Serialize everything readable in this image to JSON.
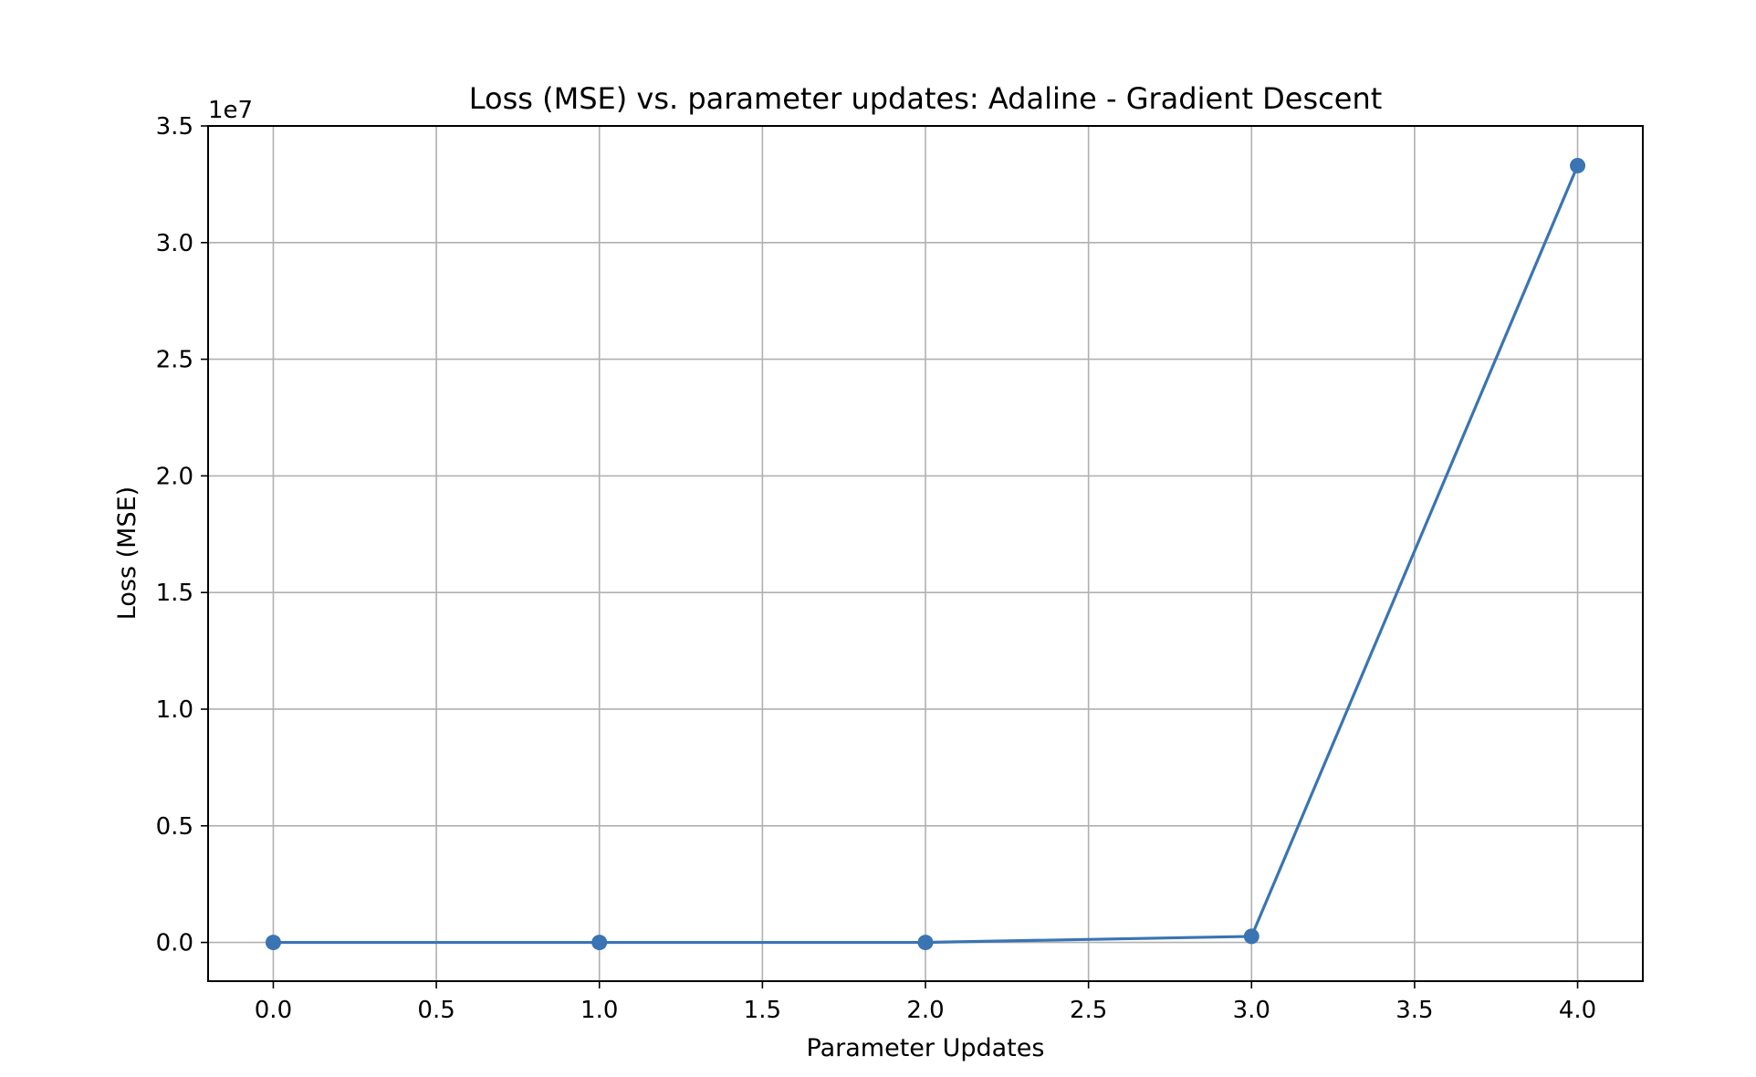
{
  "chart_data": {
    "type": "line",
    "title": "Loss (MSE) vs. parameter updates: Adaline - Gradient Descent",
    "xlabel": "Parameter Updates",
    "ylabel": "Loss (MSE)",
    "y_offset_label": "1e7",
    "x": [
      0,
      1,
      2,
      3,
      4
    ],
    "series": [
      {
        "values": [
          0,
          0,
          0,
          260000,
          33300000
        ],
        "color": "#3a74b3",
        "marker": "circle"
      }
    ],
    "xlim": [
      -0.2,
      4.2
    ],
    "ylim": [
      -1660000,
      35000000
    ],
    "x_ticks": [
      0.0,
      0.5,
      1.0,
      1.5,
      2.0,
      2.5,
      3.0,
      3.5,
      4.0
    ],
    "x_tick_labels": [
      "0.0",
      "0.5",
      "1.0",
      "1.5",
      "2.0",
      "2.5",
      "3.0",
      "3.5",
      "4.0"
    ],
    "y_ticks": [
      0,
      5000000,
      10000000,
      15000000,
      20000000,
      25000000,
      30000000,
      35000000
    ],
    "y_tick_labels": [
      "0.0",
      "0.5",
      "1.0",
      "1.5",
      "2.0",
      "2.5",
      "3.0",
      "3.5"
    ],
    "grid": true,
    "grid_color": "#b0b0b0",
    "axes_color": "#000000"
  }
}
